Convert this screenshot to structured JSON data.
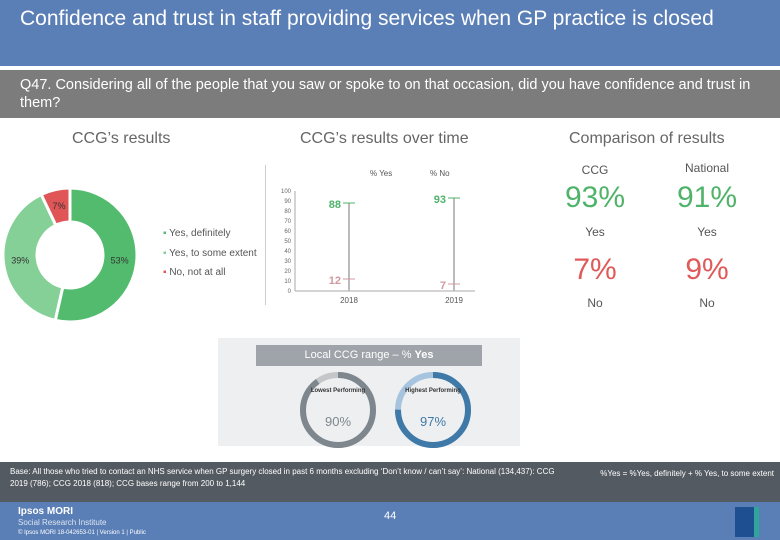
{
  "header": {
    "title": "Confidence and trust in staff providing services when GP practice is closed"
  },
  "question": "Q47. Considering all of the people that you saw or spoke to on that occasion, did you have confidence and trust in them?",
  "sections": {
    "ccg": "CCG’s results",
    "over_time": "CCG’s results over time",
    "comparison": "Comparison of results"
  },
  "donut": {
    "segments": [
      {
        "label": "Yes, definitely",
        "value": 53,
        "text": "53%",
        "color": "#52bb6e"
      },
      {
        "label": "Yes, to some extent",
        "value": 39,
        "text": "39%",
        "color": "#84d097"
      },
      {
        "label": "No, not at all",
        "value": 7,
        "text": "7%",
        "color": "#e05555"
      }
    ]
  },
  "chart_data": {
    "type": "line",
    "categories": [
      "2018",
      "2019"
    ],
    "series": [
      {
        "name": "% Yes",
        "values": [
          88,
          93
        ],
        "color": "#4fb36a"
      },
      {
        "name": "% No",
        "values": [
          12,
          7
        ],
        "color": "#d09aa0"
      }
    ],
    "ylim": [
      0,
      100
    ],
    "yticks": [
      "0",
      "10",
      "20",
      "30",
      "40",
      "50",
      "60",
      "70",
      "80",
      "90",
      "100"
    ]
  },
  "comparison": {
    "ccg_label": "CCG",
    "national_label": "National",
    "ccg_yes": "93%",
    "national_yes": "91%",
    "yes_label": "Yes",
    "ccg_no": "7%",
    "national_no": "9%",
    "no_label": "No"
  },
  "range": {
    "title_prefix": "Local CCG range – % ",
    "title_bold": "Yes",
    "lowest_label": "Lowest Performing",
    "lowest_value": "90%",
    "highest_label": "Highest Performing",
    "highest_value": "97%"
  },
  "footer": {
    "base": "Base: All those who tried to contact an NHS service when GP surgery closed in past 6 months excluding ‘Don’t know / can’t say’: National (134,437): CCG 2019 (786); CCG 2018 (818); CCG bases range from 200 to 1,144",
    "note": "%Yes = %Yes, definitely + % Yes, to some extent",
    "brand": "Ipsos MORI",
    "sub": "Social Research Institute",
    "copyright": "© Ipsos MORI     18-042653-01 | Version 1 | Public",
    "page": "44"
  }
}
